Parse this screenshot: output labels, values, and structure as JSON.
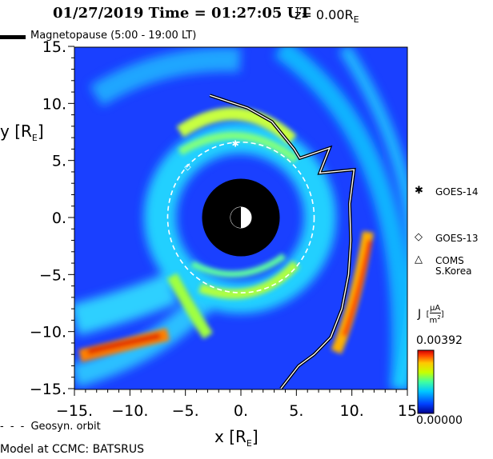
{
  "header": {
    "title": "01/27/2019 Time = 01:27:05 UT",
    "z_label": "z= 0.00R",
    "z_sub": "E"
  },
  "legend": {
    "magnetopause": "Magnetopause (5:00 - 19:00 LT)",
    "geosyn": "Geosyn. orbit"
  },
  "footer": {
    "model": "Model at CCMC: BATSRUS"
  },
  "chart_data": {
    "type": "heatmap",
    "title": "01/27/2019 Time = 01:27:05 UT",
    "xlabel": "x [R",
    "xlabel_sub": "E",
    "ylabel": "y [R",
    "ylabel_sub": "E",
    "xlim": [
      -15,
      15
    ],
    "ylim": [
      -15,
      15
    ],
    "x_ticks": [
      -15,
      -10,
      -5,
      0,
      5,
      10,
      15
    ],
    "x_tick_labels": [
      "−15.",
      "−10.",
      "−5.",
      "0.",
      "5.",
      "10.",
      "15"
    ],
    "y_ticks": [
      15,
      10,
      5,
      0,
      -5,
      -10,
      -15
    ],
    "y_tick_labels": [
      "15.",
      "10.",
      "5.",
      "0.",
      "−5.",
      "−10.",
      "−15."
    ],
    "colorbar": {
      "label": "J",
      "unit_num": "μA",
      "unit_den": "m",
      "unit_den_exp": "2",
      "min_label": "0.00000",
      "max_label": "0.00392",
      "colors": [
        "#00008c",
        "#0040ff",
        "#00c8ff",
        "#40ffa0",
        "#c8ff00",
        "#ffc800",
        "#ff4000",
        "#d00000"
      ]
    },
    "background_color": "#1a40ff",
    "earth_radius": 3.5,
    "geosync_orbit": {
      "center": [
        0,
        0
      ],
      "rx": 6.6,
      "ry": 6.6
    },
    "magnetopause": [
      [
        -2.8,
        10.7
      ],
      [
        0.6,
        9.6
      ],
      [
        2.8,
        8.4
      ],
      [
        4.8,
        6.0
      ],
      [
        5.3,
        5.2
      ],
      [
        8.0,
        6.1
      ],
      [
        7.1,
        3.9
      ],
      [
        10.2,
        4.2
      ],
      [
        9.8,
        1.2
      ],
      [
        9.9,
        -2.0
      ],
      [
        9.7,
        -5.0
      ],
      [
        9.1,
        -8.0
      ],
      [
        8.1,
        -10.5
      ],
      [
        6.6,
        -12.0
      ],
      [
        5.2,
        -13.0
      ],
      [
        3.6,
        -15.0
      ]
    ],
    "satellites": [
      {
        "name": "GOES-14",
        "symbol": "✱",
        "x": -0.5,
        "y": 6.5
      },
      {
        "name": "GOES-13",
        "symbol": "◇",
        "x": -4.8,
        "y": 4.5
      }
    ],
    "satellite_legend": [
      {
        "symbol": "✱",
        "label": "GOES-14"
      },
      {
        "symbol": "◇",
        "label": "GOES-13"
      },
      {
        "symbol": "△",
        "label": "COMS\nS.Korea"
      }
    ]
  }
}
